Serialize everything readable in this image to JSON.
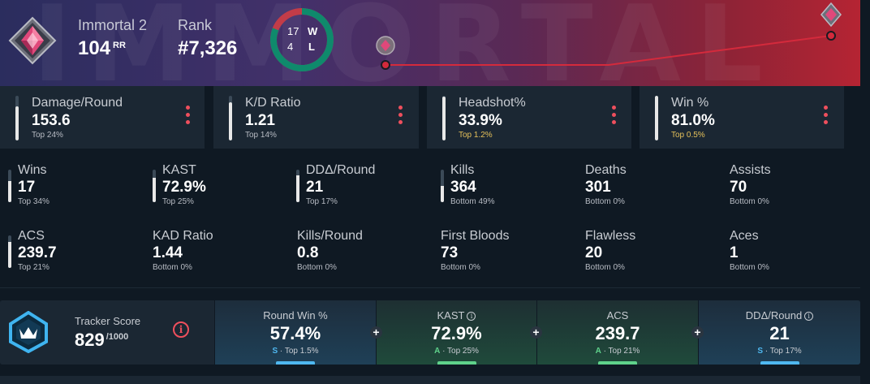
{
  "hero": {
    "watermark": "IMMORTAL",
    "tier_name": "Immortal 2",
    "rr_value": "104",
    "rr_unit": "RR",
    "rank_label": "Rank",
    "rank_value": "#7,326",
    "wins": "17",
    "losses": "4",
    "w_label": "W",
    "l_label": "L",
    "win_fraction": 0.81,
    "colors": {
      "win": "#0f8a6c",
      "loss": "#c23c48",
      "line": "#d42a3c"
    }
  },
  "cards": [
    {
      "label": "Damage/Round",
      "value": "153.6",
      "rank": "Top 24%",
      "fill": 0.76,
      "gold": false
    },
    {
      "label": "K/D Ratio",
      "value": "1.21",
      "rank": "Top 14%",
      "fill": 0.86,
      "gold": false
    },
    {
      "label": "Headshot%",
      "value": "33.9%",
      "rank": "Top 1.2%",
      "fill": 0.99,
      "gold": true
    },
    {
      "label": "Win %",
      "value": "81.0%",
      "rank": "Top 0.5%",
      "fill": 0.995,
      "gold": true
    }
  ],
  "stats": [
    {
      "label": "Wins",
      "value": "17",
      "rank": "Top 34%",
      "fill": 0.66
    },
    {
      "label": "KAST",
      "value": "72.9%",
      "rank": "Top 25%",
      "fill": 0.75
    },
    {
      "label": "DDΔ/Round",
      "value": "21",
      "rank": "Top 17%",
      "fill": 0.83
    },
    {
      "label": "Kills",
      "value": "364",
      "rank": "Bottom 49%",
      "fill": 0.49
    },
    {
      "label": "Deaths",
      "value": "301",
      "rank": "Bottom 0%",
      "fill": 0
    },
    {
      "label": "Assists",
      "value": "70",
      "rank": "Bottom 0%",
      "fill": 0
    },
    {
      "label": "ACS",
      "value": "239.7",
      "rank": "Top 21%",
      "fill": 0.79
    },
    {
      "label": "KAD Ratio",
      "value": "1.44",
      "rank": "Bottom 0%",
      "fill": 0
    },
    {
      "label": "Kills/Round",
      "value": "0.8",
      "rank": "Bottom 0%",
      "fill": 0
    },
    {
      "label": "First Bloods",
      "value": "73",
      "rank": "Bottom 0%",
      "fill": 0
    },
    {
      "label": "Flawless",
      "value": "20",
      "rank": "Bottom 0%",
      "fill": 0
    },
    {
      "label": "Aces",
      "value": "1",
      "rank": "Bottom 0%",
      "fill": 0
    }
  ],
  "tracker": {
    "label": "Tracker Score",
    "value": "829",
    "max": "/1000",
    "info_glyph": "i",
    "plus_glyph": "+",
    "cells": [
      {
        "label": "Round Win %",
        "value": "57.4%",
        "tier": "S",
        "sep": " · ",
        "rank": "Top 1.5%",
        "theme": "blue",
        "info": false
      },
      {
        "label": "KAST",
        "value": "72.9%",
        "tier": "A",
        "sep": " · ",
        "rank": "Top 25%",
        "theme": "green",
        "info": true
      },
      {
        "label": "ACS",
        "value": "239.7",
        "tier": "A",
        "sep": " · ",
        "rank": "Top 21%",
        "theme": "green",
        "info": false
      },
      {
        "label": "DDΔ/Round",
        "value": "21",
        "tier": "S",
        "sep": " · ",
        "rank": "Top 17%",
        "theme": "blue",
        "info": true
      }
    ]
  }
}
